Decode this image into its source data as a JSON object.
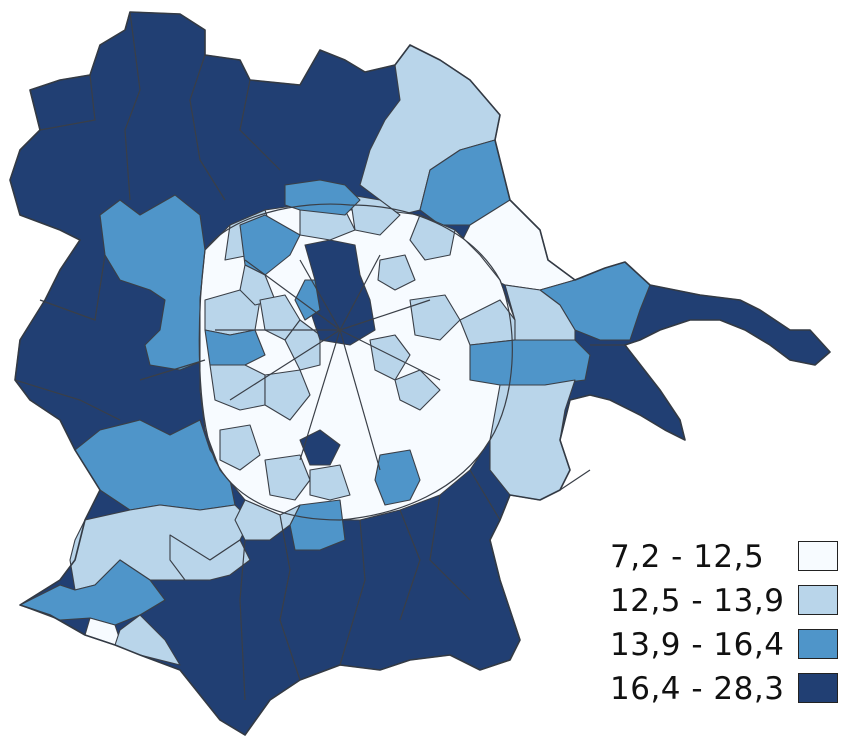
{
  "legend": {
    "items": [
      {
        "label": "7,2 - 12,5",
        "color": "#f7fbff"
      },
      {
        "label": "12,5 - 13,9",
        "color": "#b9d5ea"
      },
      {
        "label": "13,9 - 16,4",
        "color": "#4f95c9"
      },
      {
        "label": "16,4 - 28,3",
        "color": "#213f73"
      }
    ]
  },
  "palette": {
    "c1": "#f7fbff",
    "c2": "#b9d5ea",
    "c3": "#4f95c9",
    "c4": "#213f73",
    "border": "#3a3f47"
  }
}
